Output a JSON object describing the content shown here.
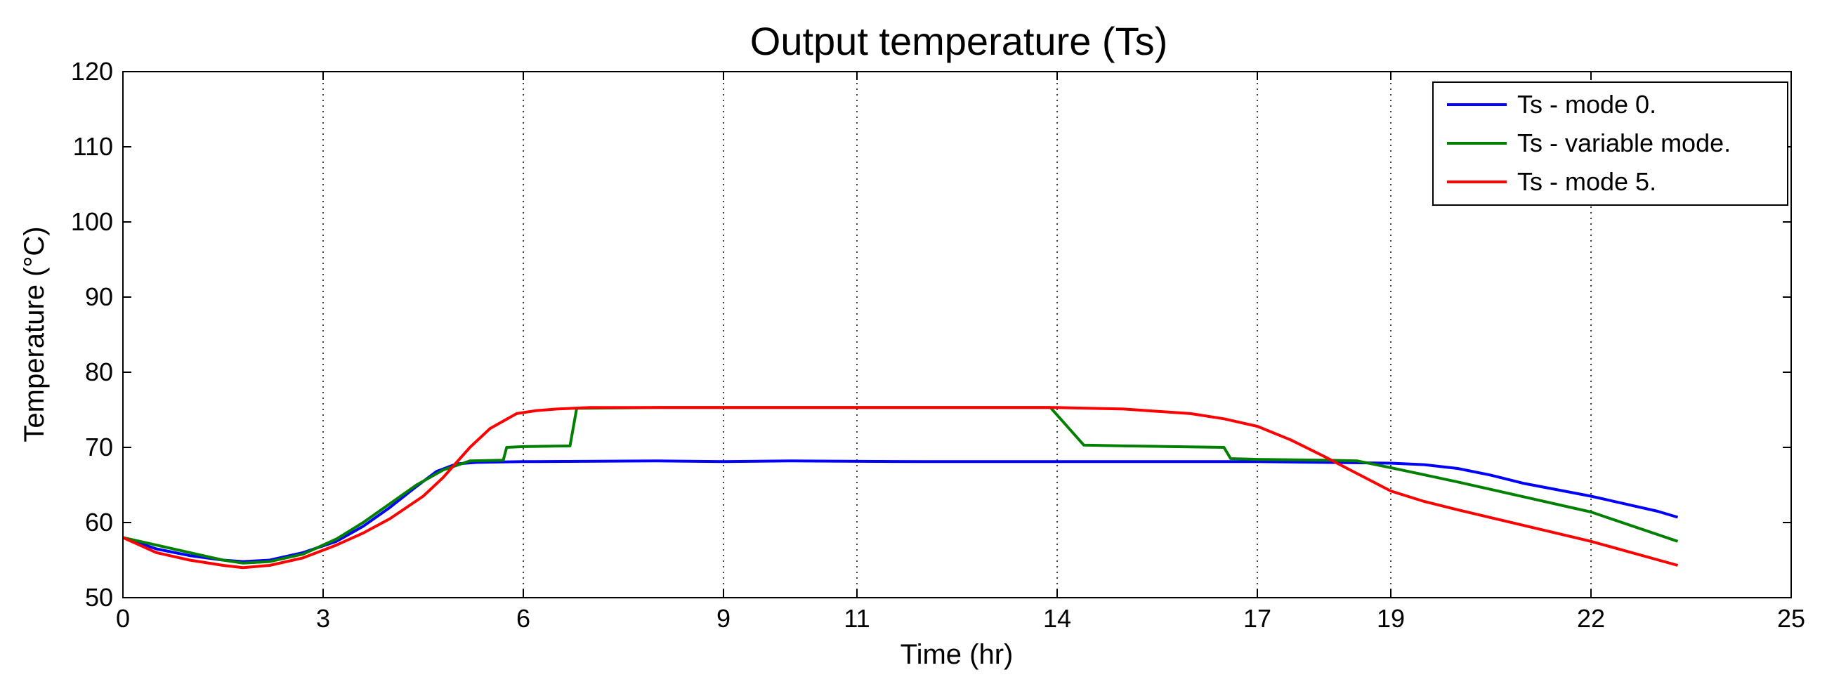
{
  "chart_data": {
    "type": "line",
    "title": "Output temperature (Ts)",
    "xlabel": "Time (hr)",
    "ylabel": "Temperature (°C)",
    "xlim": [
      0,
      25
    ],
    "ylim": [
      50,
      120
    ],
    "x_ticks": [
      0,
      3,
      6,
      9,
      11,
      14,
      17,
      19,
      22,
      25
    ],
    "y_ticks": [
      50,
      60,
      70,
      80,
      90,
      100,
      110,
      120
    ],
    "grid": "x-dotted",
    "legend_position": "top-right",
    "series": [
      {
        "name": "Ts - mode 0.",
        "color": "#0000ff",
        "points": [
          [
            0,
            58
          ],
          [
            0.5,
            56.5
          ],
          [
            1,
            55.6
          ],
          [
            1.5,
            55
          ],
          [
            1.8,
            54.8
          ],
          [
            2.2,
            55
          ],
          [
            2.7,
            56
          ],
          [
            3.2,
            57.5
          ],
          [
            3.6,
            59.5
          ],
          [
            4,
            62
          ],
          [
            4.4,
            64.8
          ],
          [
            4.7,
            66.8
          ],
          [
            5,
            67.8
          ],
          [
            5.3,
            68
          ],
          [
            6,
            68.1
          ],
          [
            8,
            68.2
          ],
          [
            9,
            68.1
          ],
          [
            10,
            68.2
          ],
          [
            12,
            68.1
          ],
          [
            14,
            68.1
          ],
          [
            16,
            68.1
          ],
          [
            17,
            68.1
          ],
          [
            18,
            68
          ],
          [
            19,
            67.9
          ],
          [
            19.5,
            67.7
          ],
          [
            20,
            67.2
          ],
          [
            20.5,
            66.3
          ],
          [
            21,
            65.2
          ],
          [
            22,
            63.5
          ],
          [
            23,
            61.5
          ],
          [
            23.3,
            60.7
          ]
        ]
      },
      {
        "name": "Ts - variable mode.",
        "color": "#008000",
        "points": [
          [
            0,
            58
          ],
          [
            0.5,
            57
          ],
          [
            1,
            56
          ],
          [
            1.5,
            55
          ],
          [
            1.8,
            54.6
          ],
          [
            2.2,
            54.8
          ],
          [
            2.7,
            55.8
          ],
          [
            3.2,
            57.8
          ],
          [
            3.6,
            60
          ],
          [
            4,
            62.5
          ],
          [
            4.4,
            65
          ],
          [
            4.8,
            67
          ],
          [
            5.2,
            68.2
          ],
          [
            5.7,
            68.3
          ],
          [
            5.75,
            70
          ],
          [
            6,
            70.1
          ],
          [
            6.7,
            70.2
          ],
          [
            6.8,
            75.2
          ],
          [
            8,
            75.3
          ],
          [
            10,
            75.3
          ],
          [
            12,
            75.3
          ],
          [
            13.9,
            75.3
          ],
          [
            14.4,
            70.3
          ],
          [
            15,
            70.2
          ],
          [
            16.5,
            70
          ],
          [
            16.6,
            68.5
          ],
          [
            17,
            68.4
          ],
          [
            18,
            68.3
          ],
          [
            18.5,
            68.2
          ],
          [
            19,
            67.3
          ],
          [
            20,
            65.4
          ],
          [
            21,
            63.4
          ],
          [
            22,
            61.4
          ],
          [
            23.3,
            57.5
          ]
        ]
      },
      {
        "name": "Ts - mode 5.",
        "color": "#ff0000",
        "points": [
          [
            0,
            58
          ],
          [
            0.5,
            56
          ],
          [
            1,
            55
          ],
          [
            1.5,
            54.3
          ],
          [
            1.8,
            54
          ],
          [
            2.2,
            54.3
          ],
          [
            2.7,
            55.3
          ],
          [
            3.2,
            57
          ],
          [
            3.6,
            58.6
          ],
          [
            4,
            60.5
          ],
          [
            4.5,
            63.5
          ],
          [
            4.8,
            66
          ],
          [
            5.2,
            70
          ],
          [
            5.5,
            72.5
          ],
          [
            5.9,
            74.5
          ],
          [
            6.2,
            74.9
          ],
          [
            6.5,
            75.1
          ],
          [
            7,
            75.3
          ],
          [
            9,
            75.3
          ],
          [
            12,
            75.3
          ],
          [
            14,
            75.3
          ],
          [
            15,
            75.1
          ],
          [
            16,
            74.5
          ],
          [
            16.5,
            73.8
          ],
          [
            17,
            72.8
          ],
          [
            17.5,
            71
          ],
          [
            18,
            68.8
          ],
          [
            18.5,
            66.5
          ],
          [
            19,
            64.2
          ],
          [
            19.5,
            62.8
          ],
          [
            20,
            61.7
          ],
          [
            21,
            59.6
          ],
          [
            22,
            57.5
          ],
          [
            23.3,
            54.3
          ]
        ]
      }
    ]
  }
}
